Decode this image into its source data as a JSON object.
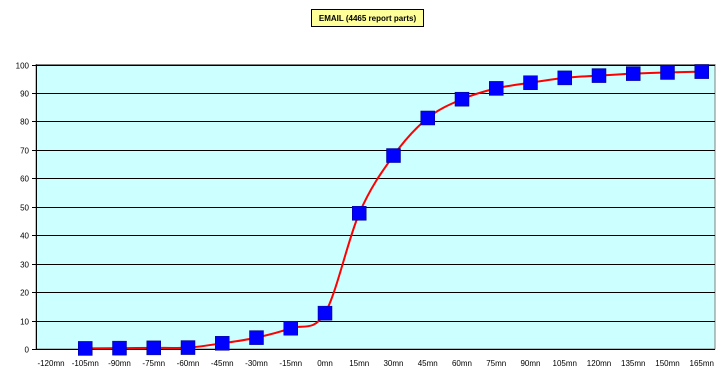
{
  "chart_data": {
    "type": "line",
    "title": "EMAIL (4465 report parts)",
    "xlabel": "",
    "ylabel": "",
    "x_ticks": [
      "-120mn",
      "-105mn",
      "-90mn",
      "-75mn",
      "-60mn",
      "-45mn",
      "-30mn",
      "-15mn",
      "0mn",
      "15mn",
      "30mn",
      "45mn",
      "60mn",
      "75mn",
      "90mn",
      "105mn",
      "120mn",
      "135mn",
      "150mn",
      "165mn"
    ],
    "y_ticks": [
      "0",
      "10",
      "20",
      "30",
      "40",
      "50",
      "60",
      "70",
      "80",
      "90",
      "100"
    ],
    "ylim": [
      0,
      100
    ],
    "grid": "horizontal",
    "plot_background": "#ccffff",
    "line_color": "#ff0000",
    "marker_color": "#0000ff",
    "series": [
      {
        "x": [
          "-105mn",
          "-90mn",
          "-75mn",
          "-60mn",
          "-45mn",
          "-30mn",
          "-15mn",
          "0mn",
          "15mn",
          "30mn",
          "45mn",
          "60mn",
          "75mn",
          "90mn",
          "105mn",
          "120mn",
          "135mn",
          "150mn",
          "165mn"
        ],
        "values": [
          0.2,
          0.3,
          0.4,
          0.5,
          2.0,
          4.0,
          7.3,
          12.6,
          47.7,
          68.0,
          81.2,
          87.8,
          91.6,
          93.6,
          95.3,
          96.1,
          96.8,
          97.2,
          97.5
        ]
      }
    ]
  }
}
